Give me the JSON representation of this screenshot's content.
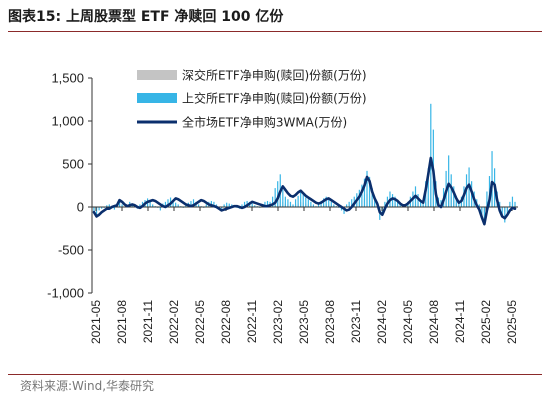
{
  "figure": {
    "title": "图表15:  上周股票型 ETF 净赎回 100 亿份",
    "source": "资料来源:Wind,华泰研究"
  },
  "colors": {
    "sz_bar": "#c4c4c4",
    "sh_bar": "#37b5e6",
    "wma_line": "#0b2f6d",
    "axis": "#333333",
    "accent_rule": "#8b2a2a"
  },
  "chart_data": {
    "type": "bar",
    "ylim": [
      -1000,
      1500
    ],
    "yticks": [
      -1000,
      -500,
      0,
      500,
      1000,
      1500
    ],
    "ytick_labels": [
      "-1,000",
      "-500",
      "0",
      "500",
      "1,000",
      "1,500"
    ],
    "grid": false,
    "legend_position": "top-left",
    "x_tick_labels": [
      "2021-05",
      "2021-08",
      "2021-11",
      "2022-02",
      "2022-05",
      "2022-08",
      "2022-11",
      "2023-02",
      "2023-05",
      "2023-08",
      "2023-11",
      "2024-02",
      "2024-05",
      "2024-08",
      "2024-11",
      "2025-02",
      "2025-05"
    ],
    "series": [
      {
        "name": "深交所ETF净申购(赎回)份额(万份)",
        "kind": "bar",
        "values": [
          -20,
          -30,
          -10,
          -5,
          0,
          10,
          15,
          5,
          -10,
          20,
          30,
          10,
          0,
          10,
          20,
          15,
          5,
          -5,
          10,
          20,
          25,
          30,
          20,
          10,
          5,
          0,
          -10,
          15,
          20,
          30,
          40,
          30,
          20,
          10,
          5,
          0,
          10,
          20,
          25,
          30,
          20,
          10,
          5,
          0,
          10,
          20,
          25,
          20,
          10,
          0,
          -5,
          10,
          20,
          15,
          10,
          5,
          0,
          -5,
          10,
          20,
          25,
          20,
          15,
          10,
          5,
          0,
          10,
          20,
          25,
          20,
          30,
          60,
          80,
          90,
          60,
          40,
          30,
          20,
          10,
          30,
          40,
          60,
          50,
          40,
          30,
          20,
          10,
          5,
          10,
          20,
          30,
          40,
          30,
          20,
          10,
          5,
          0,
          -10,
          -20,
          10,
          20,
          30,
          40,
          50,
          60,
          80,
          100,
          150,
          120,
          80,
          40,
          10,
          -40,
          -20,
          20,
          40,
          60,
          50,
          40,
          20,
          10,
          5,
          10,
          20,
          40,
          60,
          80,
          50,
          30,
          20,
          60,
          100,
          400,
          300,
          100,
          40,
          30,
          80,
          150,
          200,
          120,
          80,
          40,
          20,
          40,
          80,
          120,
          150,
          100,
          60,
          30,
          10,
          -40,
          -60,
          60,
          120,
          200,
          150,
          60,
          20,
          -30,
          -50,
          -20,
          20,
          40,
          20
        ],
        "legend_label": "深交所ETF净申购(赎回)份额(万份)"
      },
      {
        "name": "上交所ETF净申购(赎回)份额(万份)",
        "kind": "bar",
        "values": [
          -60,
          -100,
          -40,
          -20,
          -10,
          20,
          30,
          10,
          -30,
          40,
          90,
          30,
          0,
          20,
          60,
          40,
          20,
          -20,
          30,
          60,
          80,
          100,
          60,
          30,
          10,
          -10,
          -40,
          40,
          60,
          90,
          110,
          80,
          50,
          30,
          10,
          -10,
          20,
          50,
          70,
          90,
          60,
          30,
          10,
          -10,
          30,
          60,
          70,
          60,
          30,
          0,
          -20,
          30,
          50,
          40,
          30,
          10,
          -10,
          -20,
          30,
          60,
          70,
          60,
          40,
          20,
          10,
          -10,
          30,
          60,
          70,
          60,
          120,
          220,
          300,
          380,
          200,
          120,
          90,
          60,
          30,
          90,
          130,
          200,
          150,
          110,
          90,
          60,
          30,
          10,
          40,
          70,
          100,
          120,
          90,
          60,
          30,
          10,
          -10,
          -40,
          -80,
          30,
          60,
          90,
          120,
          160,
          200,
          260,
          330,
          420,
          350,
          220,
          120,
          30,
          -150,
          -80,
          60,
          120,
          180,
          150,
          120,
          60,
          30,
          10,
          30,
          60,
          120,
          180,
          240,
          150,
          80,
          60,
          300,
          450,
          1200,
          900,
          300,
          110,
          80,
          220,
          420,
          600,
          380,
          240,
          110,
          60,
          120,
          240,
          380,
          460,
          300,
          180,
          90,
          30,
          -130,
          -200,
          180,
          360,
          650,
          450,
          180,
          60,
          -120,
          -180,
          -70,
          60,
          120,
          60
        ],
        "legend_label": "上交所ETF净申购(赎回)份额(万份)"
      },
      {
        "name": "全市场ETF净申购3WMA(万份)",
        "kind": "line",
        "values": [
          -60,
          -110,
          -90,
          -60,
          -40,
          -20,
          -20,
          0,
          10,
          20,
          80,
          60,
          30,
          10,
          20,
          30,
          20,
          0,
          -10,
          10,
          40,
          60,
          70,
          80,
          70,
          50,
          30,
          10,
          0,
          20,
          40,
          70,
          100,
          90,
          70,
          50,
          30,
          20,
          10,
          20,
          40,
          60,
          80,
          70,
          50,
          30,
          20,
          10,
          0,
          -20,
          -40,
          -30,
          -20,
          -10,
          0,
          10,
          10,
          0,
          -10,
          0,
          20,
          40,
          60,
          50,
          40,
          30,
          20,
          10,
          10,
          20,
          30,
          50,
          100,
          180,
          240,
          200,
          160,
          130,
          120,
          140,
          170,
          190,
          160,
          130,
          110,
          90,
          70,
          50,
          40,
          50,
          70,
          90,
          100,
          80,
          60,
          40,
          20,
          0,
          -20,
          -40,
          -30,
          0,
          40,
          80,
          120,
          180,
          250,
          350,
          300,
          180,
          100,
          40,
          -60,
          -90,
          -20,
          40,
          80,
          100,
          90,
          70,
          40,
          20,
          20,
          40,
          70,
          100,
          130,
          100,
          70,
          50,
          200,
          380,
          570,
          420,
          150,
          20,
          0,
          80,
          180,
          270,
          230,
          170,
          100,
          50,
          70,
          140,
          220,
          260,
          180,
          90,
          20,
          -30,
          -120,
          -200,
          -40,
          80,
          290,
          260,
          80,
          -40,
          -110,
          -130,
          -90,
          -40,
          -10,
          -20
        ],
        "legend_label": "全市场ETF净申购3WMA(万份)"
      }
    ]
  }
}
